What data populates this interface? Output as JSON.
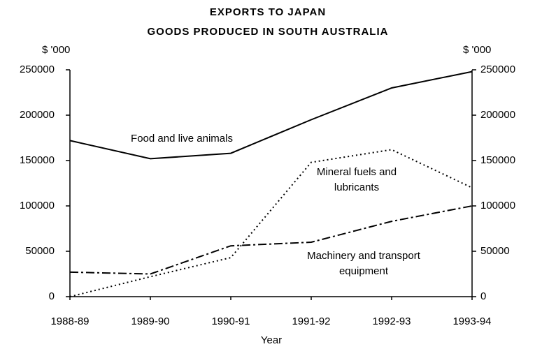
{
  "chart_data": {
    "type": "line",
    "title": "EXPORTS TO JAPAN",
    "subtitle": "GOODS PRODUCED IN SOUTH AUSTRALIA",
    "y_label": "$ '000",
    "y2_label": "$ '000",
    "x_label": "Year",
    "categories": [
      "1988-89",
      "1989-90",
      "1990-91",
      "1991-92",
      "1992-93",
      "1993-94"
    ],
    "series": [
      {
        "name": "Food and live animals",
        "color": "#000000",
        "style": "solid",
        "values": [
          172000,
          152000,
          158000,
          195000,
          230000,
          248000
        ]
      },
      {
        "name": "Mineral fuels and lubricants",
        "color": "#000000",
        "style": "dotted",
        "values": [
          0,
          22000,
          43000,
          148000,
          162000,
          120000
        ]
      },
      {
        "name": "Machinery and transport equipment",
        "color": "#000000",
        "style": "dashdot",
        "values": [
          27000,
          25000,
          56000,
          60000,
          83000,
          100000
        ]
      }
    ],
    "ylim": [
      0,
      250000
    ],
    "yticks": [
      0,
      50000,
      100000,
      150000,
      200000,
      250000
    ],
    "y2lim": [
      0,
      250000
    ],
    "y2ticks": [
      0,
      50000,
      100000,
      150000,
      200000,
      250000
    ],
    "grid": false
  }
}
